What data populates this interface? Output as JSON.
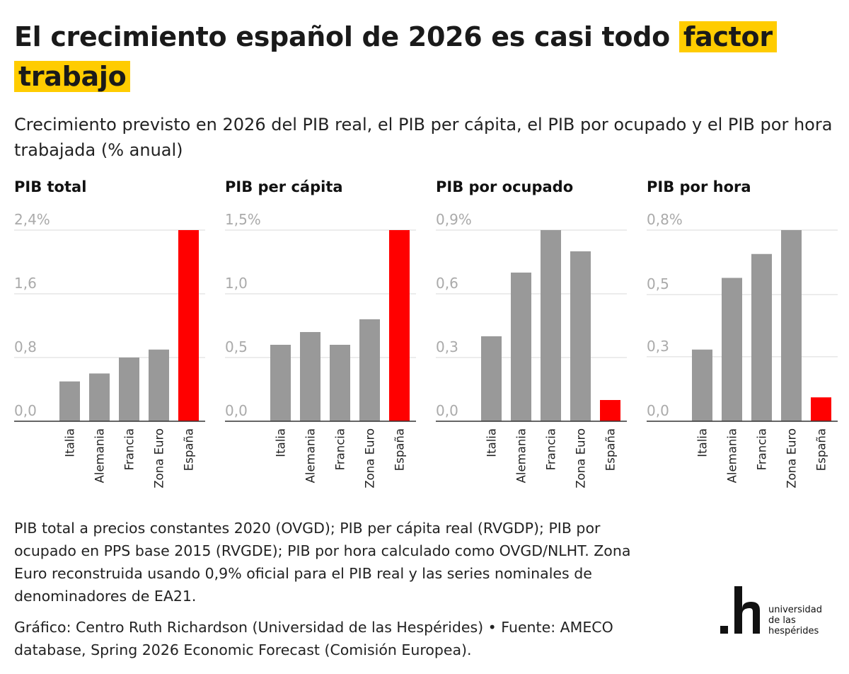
{
  "header": {
    "title_main": "El crecimiento español de 2026 es casi todo",
    "title_highlight_1": "factor",
    "title_highlight_2": "trabajo",
    "subtitle": "Crecimiento previsto en 2026 del PIB real, el PIB per cápita, el PIB por ocupado y el PIB por hora trabajada (% anual)"
  },
  "colors": {
    "bar": "#999999",
    "highlight_bar": "#ff0000",
    "title_highlight": "#ffcc00",
    "grid": "#e6e6e6",
    "tick_label": "#aaaaaa"
  },
  "chart_data": [
    {
      "type": "bar",
      "title": "PIB total",
      "categories": [
        "Italia",
        "Alemania",
        "Francia",
        "Zona Euro",
        "España"
      ],
      "values": [
        0.5,
        0.6,
        0.8,
        0.9,
        2.4
      ],
      "highlight": "España",
      "ylim": [
        0,
        2.4
      ],
      "yticks": [
        0,
        0.8,
        1.6,
        2.4
      ],
      "ytick_labels": [
        "0,0",
        "0,8",
        "1,6",
        "2,4%"
      ],
      "grid": true
    },
    {
      "type": "bar",
      "title": "PIB per cápita",
      "categories": [
        "Italia",
        "Alemania",
        "Francia",
        "Zona Euro",
        "España"
      ],
      "values": [
        0.6,
        0.7,
        0.6,
        0.8,
        1.5
      ],
      "highlight": "España",
      "ylim": [
        0,
        1.5
      ],
      "yticks": [
        0,
        0.5,
        1.0,
        1.5
      ],
      "ytick_labels": [
        "0,0",
        "0,5",
        "1,0",
        "1,5%"
      ],
      "grid": true
    },
    {
      "type": "bar",
      "title": "PIB por ocupado",
      "categories": [
        "Italia",
        "Alemania",
        "Francia",
        "Zona Euro",
        "España"
      ],
      "values": [
        0.4,
        0.7,
        0.9,
        0.8,
        0.1
      ],
      "highlight": "España",
      "ylim": [
        0,
        0.9
      ],
      "yticks": [
        0,
        0.3,
        0.6,
        0.9
      ],
      "ytick_labels": [
        "0,0",
        "0,3",
        "0,6",
        "0,9%"
      ],
      "grid": true
    },
    {
      "type": "bar",
      "title": "PIB por hora",
      "categories": [
        "Italia",
        "Alemania",
        "Francia",
        "Zona Euro",
        "España"
      ],
      "values": [
        0.3,
        0.6,
        0.7,
        0.8,
        0.1
      ],
      "highlight": "España",
      "ylim": [
        0,
        0.8
      ],
      "yticks": [
        0,
        0.27,
        0.53,
        0.8
      ],
      "ytick_labels": [
        "0,0",
        "0,3",
        "0,5",
        "0,8%"
      ],
      "grid": true
    }
  ],
  "footer": {
    "note": "PIB total a precios constantes 2020 (OVGD); PIB per cápita real (RVGDP); PIB por ocupado en PPS base 2015 (RVGDE); PIB por hora calculado como OVGD/NLHT. Zona Euro reconstruida usando 0,9% oficial para el PIB real y las series nominales de denominadores de EA21.",
    "credit": "Gráfico: Centro Ruth Richardson (Universidad de las Hespérides) • Fuente: AMECO database, Spring 2026 Economic Forecast (Comisión Europea).",
    "logo_mark": ".h",
    "logo_line_1": "universidad",
    "logo_line_2": "de las",
    "logo_line_3": "hespérides"
  }
}
